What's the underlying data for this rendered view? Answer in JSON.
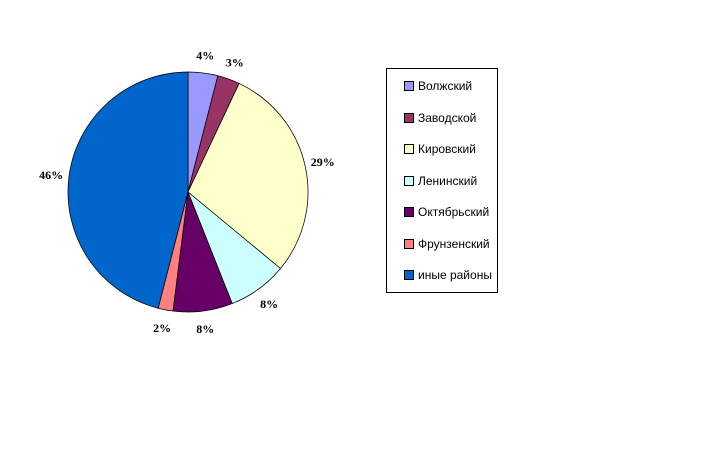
{
  "page": {
    "background_color": "#FFFFFF"
  },
  "chart_data": {
    "type": "pie",
    "title": "",
    "categories": [
      "Волжский",
      "Заводской",
      "Кировский",
      "Ленинский",
      "Октябрьский",
      "Фрунзенский",
      "иные районы"
    ],
    "values": [
      4,
      3,
      29,
      8,
      8,
      2,
      46
    ],
    "labels": [
      "4%",
      "3%",
      "29%",
      "8%",
      "8%",
      "2%",
      "46%"
    ],
    "colors": [
      "#9999FF",
      "#993366",
      "#FFFFCC",
      "#CCFFFF",
      "#660066",
      "#FF8080",
      "#0066CC"
    ],
    "slice_border_color": "#000000",
    "label_text_color": "#000000",
    "start_angle_deg": 0,
    "direction": "clockwise",
    "legend_position": "right",
    "legend_border_color": "#000000",
    "legend_background": "#FFFFFF"
  }
}
